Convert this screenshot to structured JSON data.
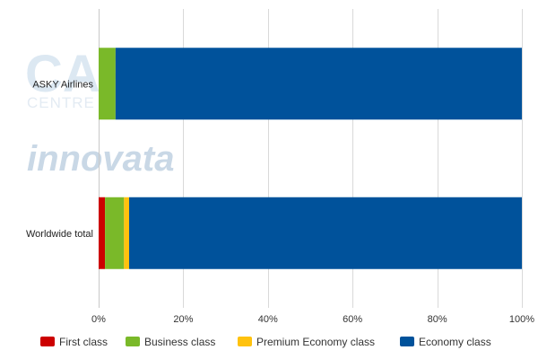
{
  "watermarks": {
    "capa": "CAPA",
    "centre": "CENTRE",
    "innovata": "innovata"
  },
  "chart_data": {
    "type": "bar",
    "orientation": "horizontal",
    "stacked": true,
    "percent_stacked": true,
    "categories": [
      "ASKY Airlines",
      "Worldwide total"
    ],
    "series": [
      {
        "name": "First class",
        "color": "#cc0000",
        "values": [
          0,
          1.5
        ]
      },
      {
        "name": "Business class",
        "color": "#7ab929",
        "values": [
          4.0,
          4.5
        ]
      },
      {
        "name": "Premium Economy class",
        "color": "#ffc20e",
        "values": [
          0,
          1.2
        ]
      },
      {
        "name": "Economy class",
        "color": "#00529b",
        "values": [
          96.0,
          92.8
        ]
      }
    ],
    "xlim": [
      0,
      100
    ],
    "xticks": [
      0,
      20,
      40,
      60,
      80,
      100
    ],
    "xtick_labels": [
      "0%",
      "20%",
      "40%",
      "60%",
      "80%",
      "100%"
    ],
    "grid": true,
    "legend_position": "bottom",
    "title": "",
    "xlabel": "",
    "ylabel": ""
  }
}
